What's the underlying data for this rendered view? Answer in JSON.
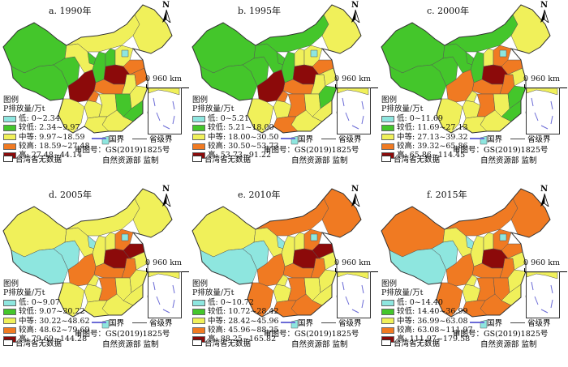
{
  "common": {
    "legend_title": "图例",
    "legend_subtitle": "P排放量/万t",
    "scale_label": "0  960 km",
    "north_label": "N",
    "national_boundary_label": "国界",
    "provincial_boundary_label": "省级界",
    "review_number": "审图号：GS(2019)1825号",
    "supervision": "自然资源部 监制",
    "taiwan_no_data": "台湾省无数据",
    "class_colors": [
      "#8ee6df",
      "#44c62b",
      "#f0f05a",
      "#f07a22",
      "#8c0a0a"
    ]
  },
  "panels": [
    {
      "title": "a. 1990年",
      "legend": [
        "低: 0~2.34",
        "较低: 2.34~9.97",
        "中等: 9.97~18.59",
        "较高: 18.59~27.48",
        "高: 27.48~44.14"
      ],
      "regions": {
        "xinjiang": "较低",
        "tibet": "较低",
        "qinghai": "较低",
        "gansu": "中等",
        "innermongolia": "中等",
        "northeast": "中等",
        "ningxia": "较低",
        "shaanxi": "较低",
        "shanxi": "较低",
        "hebei": "中等",
        "beijing_tianjin": "低",
        "shandong": "较高",
        "henan": "高",
        "hubei": "较高",
        "anhui": "中等",
        "jiangsu": "较高",
        "sichuan": "高",
        "chongqing": "较高",
        "yunnan": "中等",
        "guizhou": "中等",
        "hunan": "中等",
        "jiangxi": "较低",
        "zhejiang": "中等",
        "fujian": "较低",
        "guangdong": "中等",
        "guangxi": "中等",
        "hainan": "低"
      }
    },
    {
      "title": "b. 1995年",
      "legend": [
        "低: 0~5.21",
        "较低: 5.21~18.00",
        "中等: 18.00~30.50",
        "较高: 30.50~53.73",
        "高: 53.73~91.22"
      ],
      "regions": {
        "xinjiang": "较低",
        "tibet": "较低",
        "qinghai": "较低",
        "gansu": "较低",
        "innermongolia": "较低",
        "northeast": "中等",
        "ningxia": "较低",
        "shaanxi": "较低",
        "shanxi": "中等",
        "hebei": "中等",
        "beijing_tianjin": "低",
        "shandong": "较高",
        "henan": "高",
        "hubei": "较高",
        "anhui": "中等",
        "jiangsu": "中等",
        "sichuan": "高",
        "chongqing": "较高",
        "yunnan": "中等",
        "guizhou": "中等",
        "hunan": "较高",
        "jiangxi": "中等",
        "zhejiang": "较低",
        "fujian": "中等",
        "guangdong": "中等",
        "guangxi": "较高",
        "hainan": "低"
      }
    },
    {
      "title": "c. 2000年",
      "legend": [
        "低: 0~11.69",
        "较低: 11.69~27.13",
        "中等: 27.13~39.32",
        "较高: 39.32~65.86",
        "高: 65.86~114.45"
      ],
      "regions": {
        "xinjiang": "较低",
        "tibet": "较低",
        "qinghai": "较低",
        "gansu": "较低",
        "innermongolia": "较低",
        "northeast": "中等",
        "ningxia": "较低",
        "shaanxi": "较低",
        "shanxi": "中等",
        "hebei": "较高",
        "beijing_tianjin": "低",
        "shandong": "较高",
        "henan": "高",
        "hubei": "较高",
        "anhui": "较高",
        "jiangsu": "中等",
        "sichuan": "较高",
        "chongqing": "中等",
        "yunnan": "中等",
        "guizhou": "中等",
        "hunan": "较高",
        "jiangxi": "中等",
        "zhejiang": "较低",
        "fujian": "较低",
        "guangdong": "中等",
        "guangxi": "中等",
        "hainan": "低"
      }
    },
    {
      "title": "d. 2005年",
      "legend": [
        "低: 0~9.07",
        "较低: 9.07~30.22",
        "中等: 30.22~48.62",
        "较高: 48.62~79.69",
        "高: 79.69~144.28"
      ],
      "regions": {
        "xinjiang": "中等",
        "tibet": "低",
        "qinghai": "低",
        "gansu": "中等",
        "innermongolia": "中等",
        "northeast": "中等",
        "ningxia": "低",
        "shaanxi": "中等",
        "shanxi": "中等",
        "hebei": "较高",
        "beijing_tianjin": "低",
        "shandong": "高",
        "henan": "高",
        "hubei": "较高",
        "anhui": "较高",
        "jiangsu": "中等",
        "sichuan": "较高",
        "chongqing": "中等",
        "yunnan": "中等",
        "guizhou": "中等",
        "hunan": "较高",
        "jiangxi": "中等",
        "zhejiang": "中等",
        "fujian": "中等",
        "guangdong": "中等",
        "guangxi": "中等",
        "hainan": "低"
      }
    },
    {
      "title": "e. 2010年",
      "legend": [
        "低: 0~10.72",
        "较低: 10.72~28.42",
        "中等: 28.42~45.96",
        "较高: 45.96~88.25",
        "高: 88.25~165.82"
      ],
      "regions": {
        "xinjiang": "中等",
        "tibet": "低",
        "qinghai": "低",
        "gansu": "中等",
        "innermongolia": "较高",
        "northeast": "较高",
        "ningxia": "低",
        "shaanxi": "中等",
        "shanxi": "中等",
        "hebei": "较高",
        "beijing_tianjin": "低",
        "shandong": "高",
        "henan": "高",
        "hubei": "较高",
        "anhui": "较高",
        "jiangsu": "中等",
        "sichuan": "较高",
        "chongqing": "中等",
        "yunnan": "较高",
        "guizhou": "中等",
        "hunan": "较高",
        "jiangxi": "中等",
        "zhejiang": "中等",
        "fujian": "中等",
        "guangdong": "较高",
        "guangxi": "较高",
        "hainan": "低"
      }
    },
    {
      "title": "f. 2015年",
      "legend": [
        "低: 0~14.40",
        "较低: 14.40~36.99",
        "中等: 36.99~63.08",
        "较高: 63.08~111.97",
        "高: 111.97~179.58"
      ],
      "regions": {
        "xinjiang": "较高",
        "tibet": "低",
        "qinghai": "低",
        "gansu": "中等",
        "innermongolia": "较高",
        "northeast": "较高",
        "ningxia": "低",
        "shaanxi": "中等",
        "shanxi": "中等",
        "hebei": "较高",
        "beijing_tianjin": "低",
        "shandong": "较高",
        "henan": "高",
        "hubei": "较高",
        "anhui": "较高",
        "jiangsu": "中等",
        "sichuan": "较高",
        "chongqing": "中等",
        "yunnan": "较高",
        "guizhou": "中等",
        "hunan": "较高",
        "jiangxi": "较高",
        "zhejiang": "中等",
        "fujian": "中等",
        "guangdong": "较高",
        "guangxi": "较高",
        "hainan": "低"
      }
    }
  ]
}
